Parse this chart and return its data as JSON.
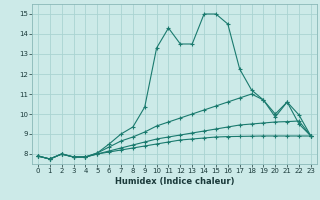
{
  "xlabel": "Humidex (Indice chaleur)",
  "background_color": "#cceae8",
  "grid_color": "#aad4d2",
  "line_color": "#1a7a6e",
  "xlim": [
    -0.5,
    23.5
  ],
  "ylim": [
    7.5,
    15.5
  ],
  "xticks": [
    0,
    1,
    2,
    3,
    4,
    5,
    6,
    7,
    8,
    9,
    10,
    11,
    12,
    13,
    14,
    15,
    16,
    17,
    18,
    19,
    20,
    21,
    22,
    23
  ],
  "yticks": [
    8,
    9,
    10,
    11,
    12,
    13,
    14,
    15
  ],
  "line1_x": [
    0,
    1,
    2,
    3,
    4,
    5,
    6,
    7,
    8,
    9,
    10,
    11,
    12,
    13,
    14,
    15,
    16,
    17,
    18,
    19,
    20,
    21,
    22,
    23
  ],
  "line1_y": [
    7.9,
    7.75,
    8.0,
    7.85,
    7.85,
    8.0,
    8.1,
    8.2,
    8.3,
    8.4,
    8.5,
    8.6,
    8.7,
    8.75,
    8.8,
    8.85,
    8.87,
    8.88,
    8.89,
    8.9,
    8.9,
    8.9,
    8.9,
    8.9
  ],
  "line2_x": [
    0,
    1,
    2,
    3,
    4,
    5,
    6,
    7,
    8,
    9,
    10,
    11,
    12,
    13,
    14,
    15,
    16,
    17,
    18,
    19,
    20,
    21,
    22,
    23
  ],
  "line2_y": [
    7.9,
    7.75,
    8.0,
    7.85,
    7.85,
    8.0,
    8.15,
    8.3,
    8.45,
    8.6,
    8.75,
    8.85,
    8.95,
    9.05,
    9.15,
    9.25,
    9.35,
    9.45,
    9.5,
    9.55,
    9.6,
    9.62,
    9.65,
    8.9
  ],
  "line3_x": [
    0,
    1,
    2,
    3,
    4,
    5,
    6,
    7,
    8,
    9,
    10,
    11,
    12,
    13,
    14,
    15,
    16,
    17,
    18,
    19,
    20,
    21,
    22,
    23
  ],
  "line3_y": [
    7.9,
    7.75,
    8.0,
    7.85,
    7.85,
    8.05,
    8.35,
    8.65,
    8.85,
    9.1,
    9.4,
    9.6,
    9.8,
    10.0,
    10.2,
    10.4,
    10.6,
    10.8,
    11.0,
    10.7,
    10.0,
    10.6,
    9.95,
    8.9
  ],
  "line4_x": [
    0,
    1,
    2,
    3,
    4,
    5,
    6,
    7,
    8,
    9,
    10,
    11,
    12,
    13,
    14,
    15,
    16,
    17,
    18,
    19,
    20,
    21,
    22,
    23
  ],
  "line4_y": [
    7.9,
    7.75,
    8.0,
    7.85,
    7.85,
    8.05,
    8.5,
    9.0,
    9.35,
    10.35,
    13.3,
    14.3,
    13.5,
    13.5,
    15.0,
    15.0,
    14.5,
    12.25,
    11.2,
    10.7,
    9.85,
    10.6,
    9.5,
    8.9
  ]
}
